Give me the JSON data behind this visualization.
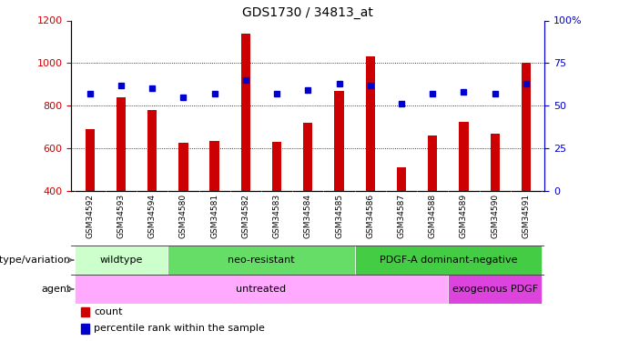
{
  "title": "GDS1730 / 34813_at",
  "samples": [
    "GSM34592",
    "GSM34593",
    "GSM34594",
    "GSM34580",
    "GSM34581",
    "GSM34582",
    "GSM34583",
    "GSM34584",
    "GSM34585",
    "GSM34586",
    "GSM34587",
    "GSM34588",
    "GSM34589",
    "GSM34590",
    "GSM34591"
  ],
  "counts": [
    690,
    840,
    780,
    625,
    635,
    1140,
    630,
    720,
    870,
    1030,
    510,
    660,
    725,
    670,
    1000
  ],
  "percentile_ranks": [
    57,
    62,
    60,
    55,
    57,
    65,
    57,
    59,
    63,
    62,
    51,
    57,
    58,
    57,
    63
  ],
  "ymin": 400,
  "ymax": 1200,
  "yticks": [
    400,
    600,
    800,
    1000,
    1200
  ],
  "right_yticks_val": [
    0,
    25,
    50,
    75,
    100
  ],
  "right_ytick_labels": [
    "0",
    "25",
    "50",
    "75",
    "100%"
  ],
  "bar_color": "#cc0000",
  "dot_color": "#0000cc",
  "bg_color": "#ffffff",
  "genotype_groups": [
    {
      "label": "wildtype",
      "start": 0,
      "end": 3,
      "color": "#ccffcc"
    },
    {
      "label": "neo-resistant",
      "start": 3,
      "end": 9,
      "color": "#66dd66"
    },
    {
      "label": "PDGF-A dominant-negative",
      "start": 9,
      "end": 15,
      "color": "#44cc44"
    }
  ],
  "agent_groups": [
    {
      "label": "untreated",
      "start": 0,
      "end": 12,
      "color": "#ffaaff"
    },
    {
      "label": "exogenous PDGF",
      "start": 12,
      "end": 15,
      "color": "#dd44dd"
    }
  ],
  "genotype_label": "genotype/variation",
  "agent_label": "agent",
  "legend_count": "count",
  "legend_pct": "percentile rank within the sample",
  "left_axis_color": "#cc0000",
  "right_axis_color": "#0000cc",
  "tick_label_bg": "#c8c8c8",
  "bar_width": 0.3
}
